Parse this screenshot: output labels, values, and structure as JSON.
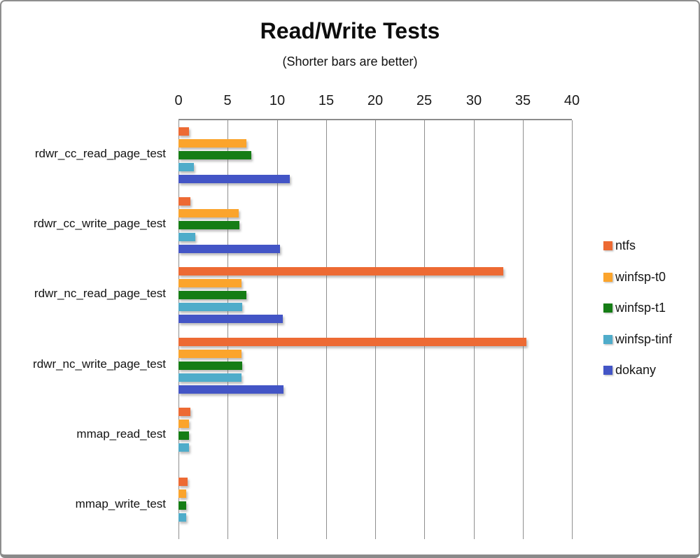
{
  "title": "Read/Write Tests",
  "subtitle": "(Shorter bars are better)",
  "chart_data": {
    "type": "bar",
    "orientation": "horizontal",
    "title": "Read/Write Tests",
    "subtitle": "(Shorter bars are better)",
    "categories": [
      "rdwr_cc_read_page_test",
      "rdwr_cc_write_page_test",
      "rdwr_nc_read_page_test",
      "rdwr_nc_write_page_test",
      "mmap_read_test",
      "mmap_write_test"
    ],
    "series": [
      {
        "name": "ntfs",
        "color": "#ED6A33",
        "values": [
          1.1,
          1.2,
          33.0,
          35.4,
          1.2,
          0.9
        ]
      },
      {
        "name": "winfsp-t0",
        "color": "#FBA42C",
        "values": [
          6.9,
          6.1,
          6.4,
          6.4,
          1.1,
          0.8
        ]
      },
      {
        "name": "winfsp-t1",
        "color": "#157D15",
        "values": [
          7.4,
          6.2,
          6.9,
          6.5,
          1.1,
          0.8
        ]
      },
      {
        "name": "winfsp-tinf",
        "color": "#4FACCA",
        "values": [
          1.6,
          1.7,
          6.5,
          6.4,
          1.1,
          0.8
        ]
      },
      {
        "name": "dokany",
        "color": "#4355C6",
        "values": [
          11.3,
          10.3,
          10.6,
          10.7,
          0,
          0
        ]
      }
    ],
    "x_axis": {
      "min": 0,
      "max": 40,
      "tick_interval": 5,
      "ticks": [
        0,
        5,
        10,
        15,
        20,
        25,
        30,
        35,
        40
      ],
      "position": "top"
    },
    "grid": true,
    "legend_position": "right",
    "axis_color": "#8c8c8c",
    "gridline_color": "#8f8f8f"
  }
}
